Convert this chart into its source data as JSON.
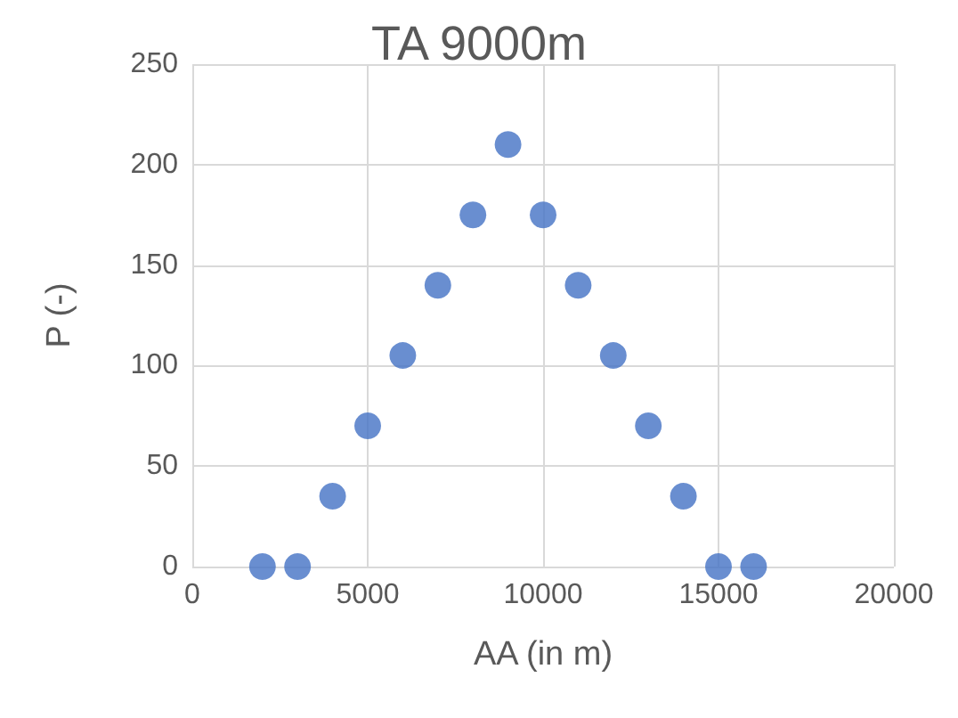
{
  "chart_data": {
    "type": "scatter",
    "title": "TA 9000m",
    "xlabel": "AA (in m)",
    "ylabel": "P (-)",
    "x": [
      2000,
      3000,
      4000,
      5000,
      6000,
      7000,
      8000,
      9000,
      10000,
      11000,
      12000,
      13000,
      14000,
      15000,
      16000
    ],
    "series": [
      {
        "color": "#4472c4",
        "values": [
          0,
          0,
          35,
          70,
          105,
          140,
          175,
          210,
          175,
          140,
          105,
          70,
          35,
          0,
          0
        ]
      }
    ],
    "xlim": [
      0,
      20000
    ],
    "xticks": [
      0,
      5000,
      10000,
      15000,
      20000
    ],
    "ylim": [
      0,
      250
    ],
    "yticks": [
      0,
      50,
      100,
      150,
      200,
      250
    ],
    "grid": true,
    "marker": "circle"
  }
}
